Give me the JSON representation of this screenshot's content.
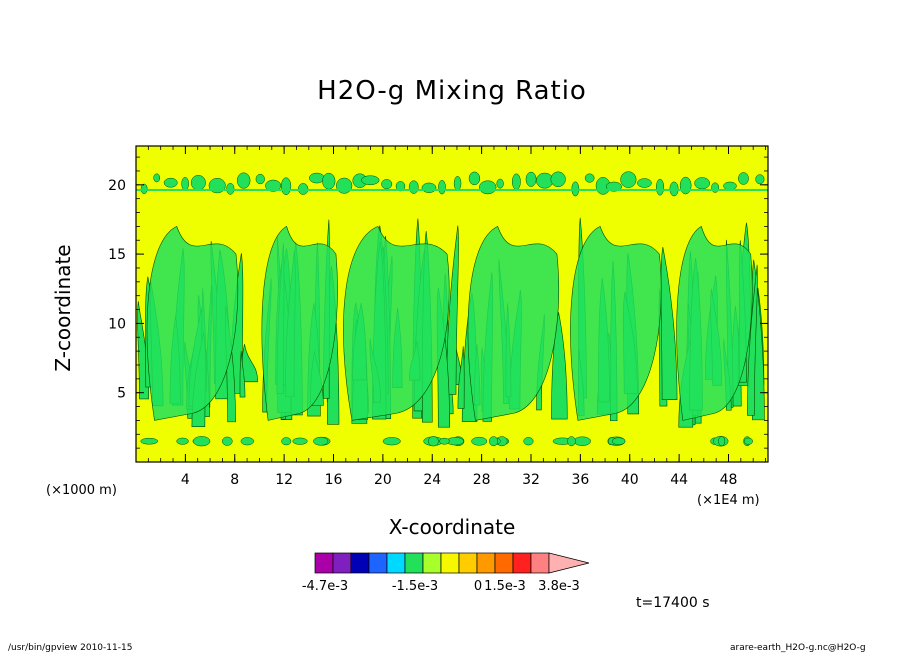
{
  "chart_data": {
    "type": "heatmap",
    "title": "H2O-g Mixing Ratio",
    "xlabel": "X-coordinate",
    "ylabel": "Z-coordinate",
    "x_unit_left": "(×1000 m)",
    "x_unit_right": "(×1E4 m)",
    "x_ticks": [
      "4",
      "8",
      "12",
      "16",
      "20",
      "24",
      "28",
      "32",
      "36",
      "40",
      "44",
      "48"
    ],
    "y_ticks": [
      "5",
      "10",
      "15",
      "20"
    ],
    "xlim": [
      0,
      51.2
    ],
    "ylim": [
      0,
      22.8
    ],
    "colorbar": {
      "colors": [
        "#aa00aa",
        "#7f1fbf",
        "#0000b4",
        "#1e64ff",
        "#00d9ff",
        "#22e05a",
        "#a8ff2a",
        "#f7f700",
        "#ffcc00",
        "#ff9900",
        "#ff6a00",
        "#ff2020",
        "#ff8080",
        "#ffb0b0"
      ],
      "labels": [
        "-4.7e-3",
        "-1.5e-3",
        "0",
        "1.5e-3",
        "3.8e-3"
      ]
    },
    "background_color": "#f0ff00",
    "contour_color": "#22e05a",
    "time": "t=17400 s"
  },
  "footer": {
    "left": "/usr/bin/gpview  2010-11-15",
    "right": "arare-earth_H2O-g.nc@H2O-g"
  }
}
